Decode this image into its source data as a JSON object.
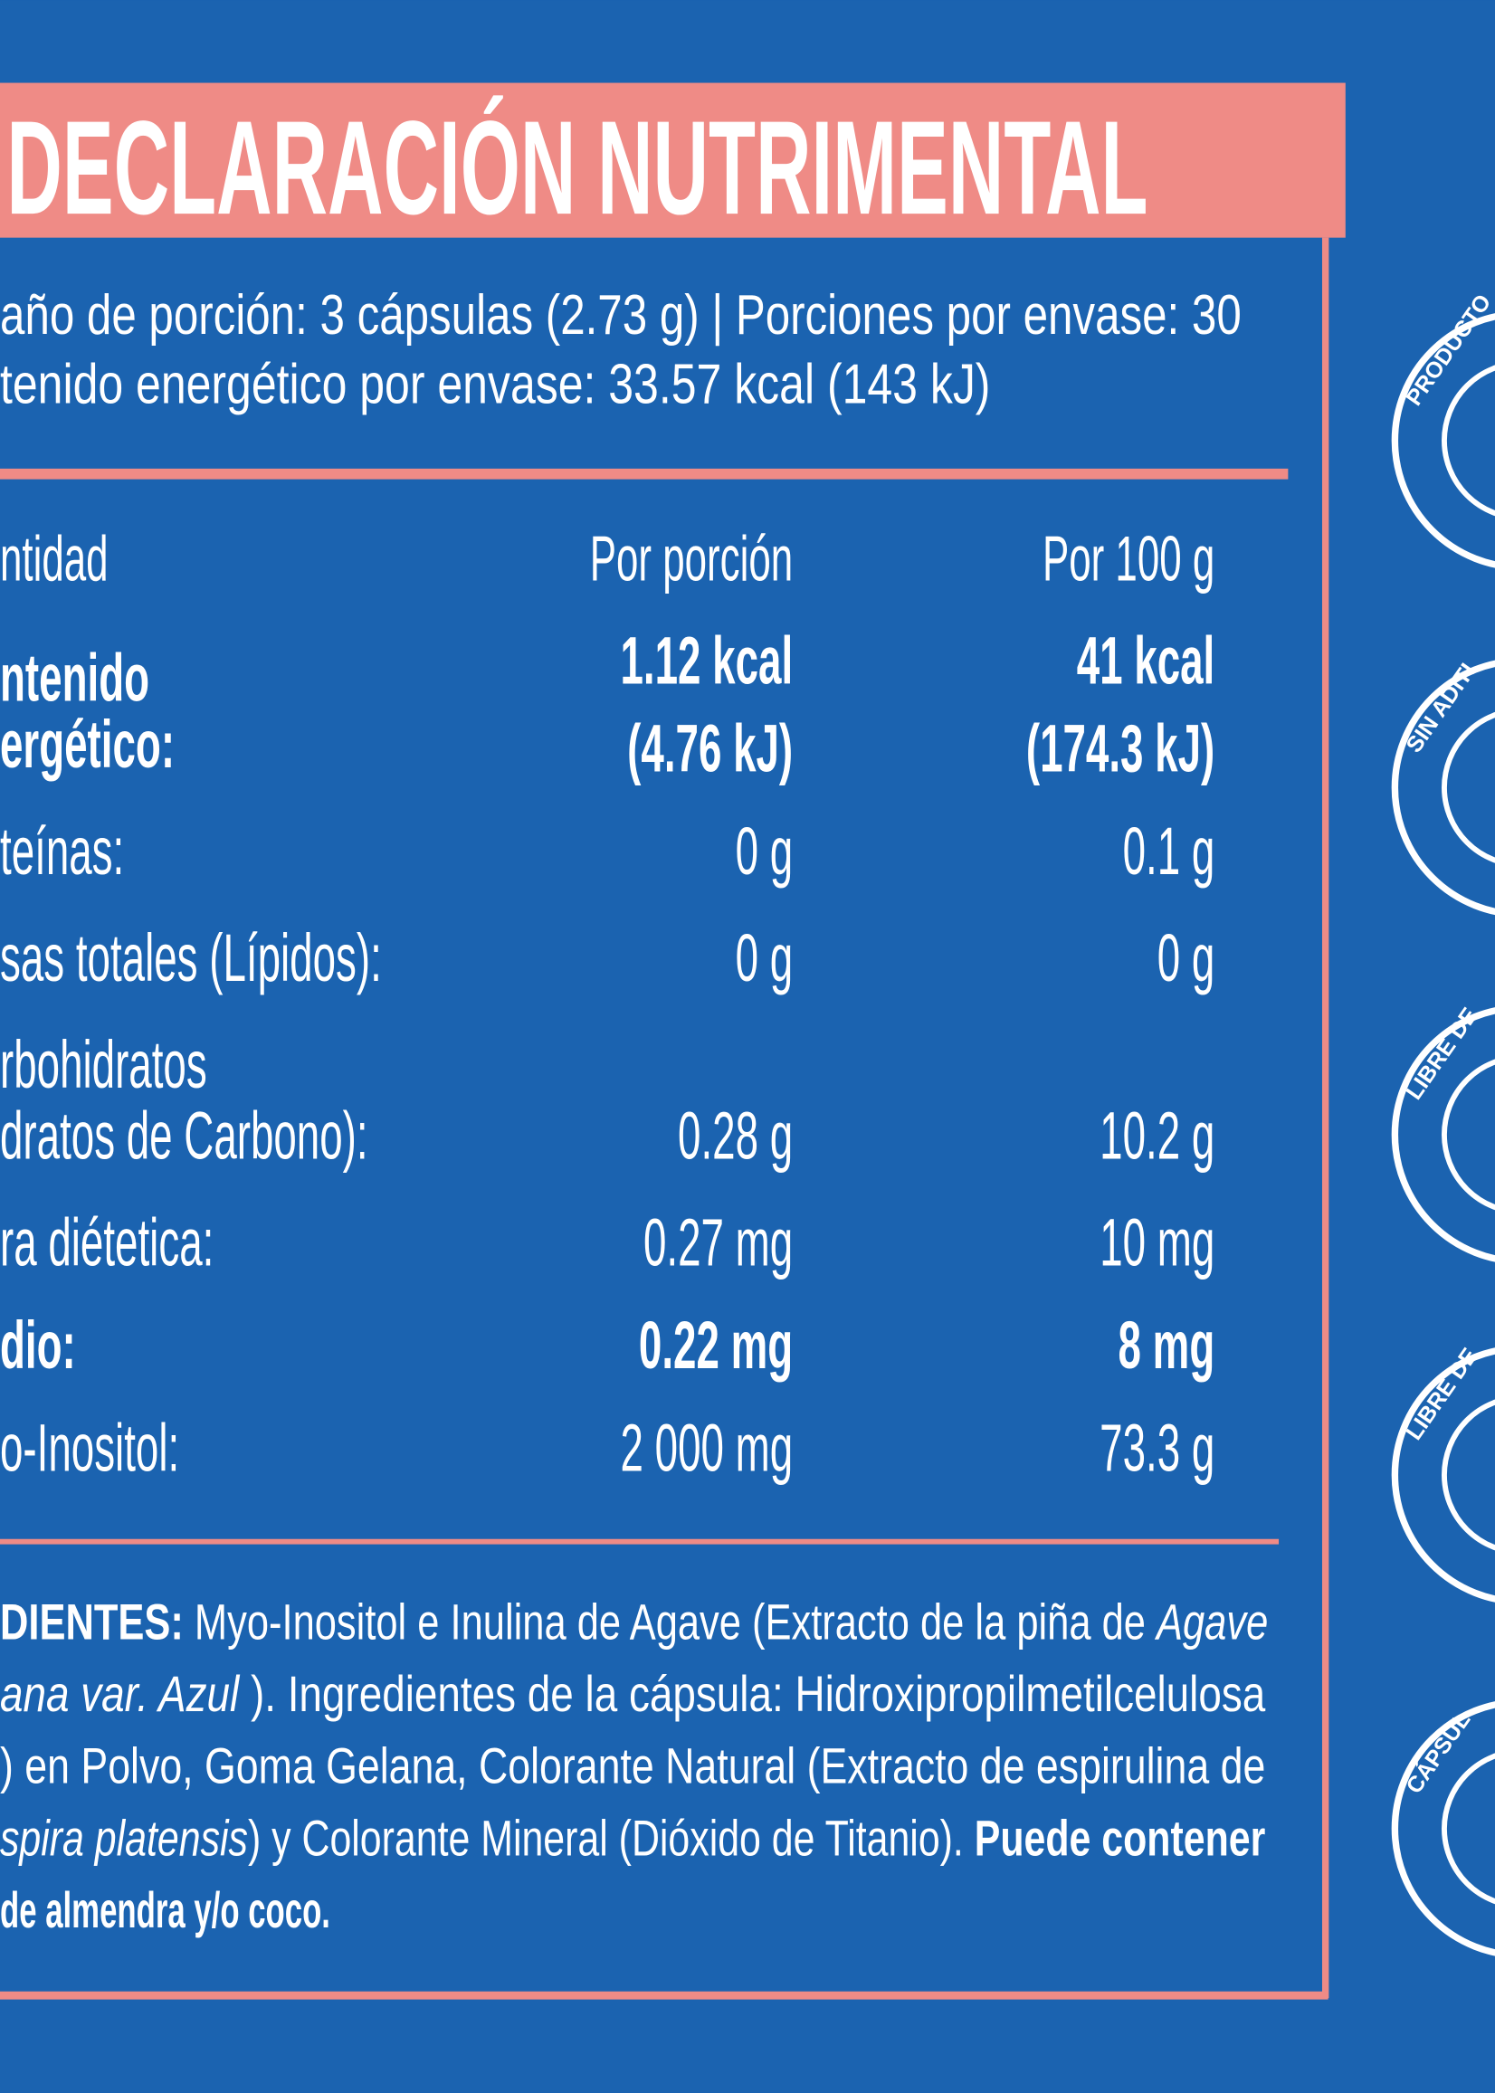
{
  "header": {
    "title": "DECLARACIÓN NUTRIMENTAL"
  },
  "serving": {
    "lines": [
      "año de porción: 3 cápsulas (2.73 g)  |  Porciones por envase: 30",
      "tenido energético por envase: 33.57 kcal (143 kJ)"
    ]
  },
  "table": {
    "header": [
      "ntidad",
      "Por porción",
      "Por 100 g"
    ],
    "rows": [
      {
        "label": [
          "ntenido",
          "ergético:"
        ],
        "per_portion": [
          "1.12 kcal",
          "(4.76 kJ)"
        ],
        "per_100g": [
          "41 kcal",
          "(174.3 kJ)"
        ],
        "bold": true
      },
      {
        "label": [
          "teínas:"
        ],
        "per_portion": [
          "0 g"
        ],
        "per_100g": [
          "0.1 g"
        ],
        "bold": false
      },
      {
        "label": [
          "sas totales (Lípidos):"
        ],
        "per_portion": [
          "0 g"
        ],
        "per_100g": [
          "0 g"
        ],
        "bold": false
      },
      {
        "label": [
          "rbohidratos",
          "dratos de Carbono):"
        ],
        "per_portion": [
          "0.28 g"
        ],
        "per_100g": [
          "10.2 g"
        ],
        "bold": false
      },
      {
        "label": [
          "ra diétetica:"
        ],
        "per_portion": [
          "0.27 mg"
        ],
        "per_100g": [
          "10 mg"
        ],
        "bold": false
      },
      {
        "label": [
          "dio:"
        ],
        "per_portion": [
          "0.22 mg"
        ],
        "per_100g": [
          "8 mg"
        ],
        "bold": true
      },
      {
        "label": [
          "o-Inositol:"
        ],
        "per_portion": [
          "2 000 mg"
        ],
        "per_100g": [
          "73.3 g"
        ],
        "bold": false
      }
    ]
  },
  "ingredients": {
    "lines": [
      [
        {
          "text": "DIENTES:",
          "style": "bold"
        },
        {
          "text": " Myo-Inositol e Inulina de Agave (Extracto de la piña de ",
          "style": "normal"
        },
        {
          "text": "Agave",
          "style": "italic"
        }
      ],
      [
        {
          "text": "ana var. Azul",
          "style": "italic"
        },
        {
          "text": " ). Ingredientes de la cápsula: Hidroxipropilmetilcelulosa",
          "style": "normal"
        }
      ],
      [
        {
          "text": ") en Polvo, Goma Gelana, Colorante Natural (Extracto de espirulina de",
          "style": "normal"
        }
      ],
      [
        {
          "text": "spira platensis",
          "style": "italic"
        },
        {
          "text": ") y Colorante Mineral (Dióxido de Titanio). ",
          "style": "normal"
        },
        {
          "text": "Puede contener",
          "style": "bold"
        }
      ],
      [
        {
          "text": "de almendra y/o coco.",
          "style": "bold"
        }
      ]
    ]
  },
  "badges": [
    "PRODUCTO",
    "SIN ADITI",
    "LIBRE DE",
    "LIBRE DE",
    "CÁPSUL"
  ]
}
